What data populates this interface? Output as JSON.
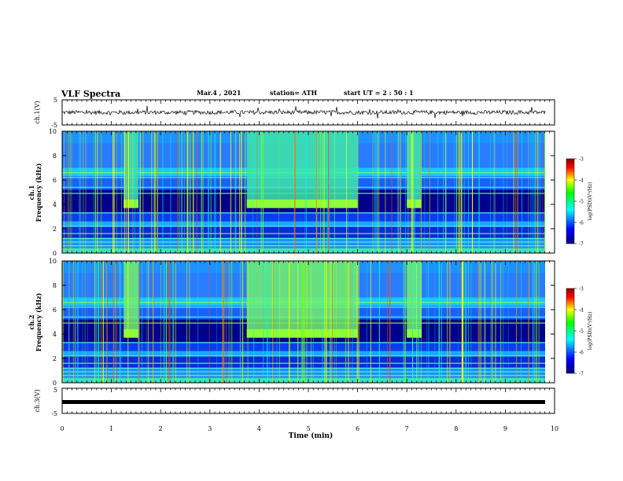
{
  "header": {
    "title": "VLF Spectra",
    "date": "Mar.4 , 2021",
    "station": "station= ATH",
    "start": "start  UT =  2 : 50 : 1"
  },
  "chart_data": [
    {
      "type": "line",
      "ylabel": "ch.1(V)",
      "ylim": [
        -5,
        5
      ],
      "yticks": [
        "5",
        "-5"
      ],
      "series": [
        {
          "values_description": "noisy trace near 0 V"
        }
      ],
      "level": 0
    },
    {
      "type": "heatmap",
      "ylabel_lines": [
        "ch.1",
        "Frequency  (kHz)"
      ],
      "ylim": [
        0,
        10
      ],
      "yticks": [
        "0",
        "2",
        "4",
        "6",
        "8",
        "10"
      ],
      "colorbar": {
        "label": "log(PSD)(V²/Hz)",
        "ticks": [
          "-3",
          "-4",
          "-5",
          "-6",
          "-7"
        ],
        "range": [
          -7,
          -3
        ]
      },
      "bursts": [
        [
          1.25,
          1.55
        ],
        [
          3.75,
          6.0
        ],
        [
          7.0,
          7.3
        ]
      ]
    },
    {
      "type": "heatmap",
      "ylabel_lines": [
        "ch.2",
        "Frequency  (kHz)"
      ],
      "ylim": [
        0,
        10
      ],
      "yticks": [
        "0",
        "2",
        "4",
        "6",
        "8",
        "10"
      ],
      "colorbar": {
        "label": "log(PSD)(V²/Hz)",
        "ticks": [
          "-3",
          "-4",
          "-5",
          "-6",
          "-7"
        ],
        "range": [
          -7,
          -3
        ]
      },
      "bursts": [
        [
          1.25,
          1.55
        ],
        [
          3.75,
          6.0
        ],
        [
          7.0,
          7.3
        ]
      ]
    },
    {
      "type": "line",
      "ylabel": "ch.3(V)",
      "ylim": [
        -5,
        5
      ],
      "yticks": [
        "5",
        "-5"
      ],
      "level": 0
    }
  ],
  "xaxis": {
    "label": "Time  (min)",
    "ticks": [
      "0",
      "1",
      "2",
      "3",
      "4",
      "5",
      "6",
      "7",
      "8",
      "9",
      "10"
    ],
    "range": [
      0,
      10
    ]
  },
  "colors": {
    "colormap": [
      "#00007a",
      "#0000ff",
      "#00ffff",
      "#00ff00",
      "#ffff00",
      "#ff0000",
      "#800000"
    ]
  }
}
